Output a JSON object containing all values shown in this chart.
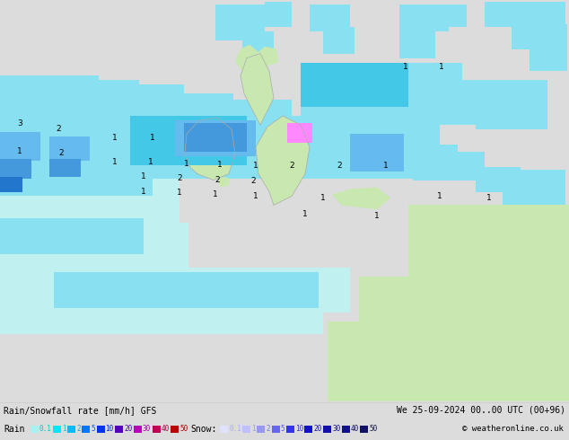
{
  "title_line1": "Rain/Snowfall rate [mm/h] GFS",
  "title_line2": "We 25-09-2024 00..00 UTC (00+96)",
  "copyright": "© weatheronline.co.uk",
  "rain_label": "Rain",
  "snow_label": "Snow:",
  "fig_width": 6.34,
  "fig_height": 4.9,
  "dpi": 100,
  "bg_color": "#dcdcdc",
  "legend_bg": "#ffffff",
  "rain_swatch_colors": [
    "#aaf0f0",
    "#00e8ff",
    "#00bbff",
    "#0077ff",
    "#0033ee",
    "#5500bb",
    "#bb00bb",
    "#bb0055",
    "#bb0000"
  ],
  "snow_swatch_colors": [
    "#e0e0ff",
    "#c0c0ff",
    "#9898ee",
    "#6666ee",
    "#3333ee",
    "#1111cc",
    "#1111aa",
    "#111188",
    "#111166"
  ],
  "rain_text_colors": [
    "#00cccc",
    "#00cccc",
    "#00aaff",
    "#0055ff",
    "#0022cc",
    "#4400aa",
    "#aa00aa",
    "#aa0044",
    "#aa0000"
  ],
  "snow_text_colors": [
    "#aaaaff",
    "#9999ee",
    "#7777ee",
    "#5555ee",
    "#3333cc",
    "#1111aa",
    "#111188",
    "#111166",
    "#111144"
  ],
  "rain_vals": [
    "0.1",
    "1",
    "2",
    "5",
    "10",
    "20",
    "30",
    "40",
    "50"
  ],
  "snow_vals": [
    "0.1",
    "1",
    "2",
    "5",
    "10",
    "20",
    "30",
    "40",
    "50"
  ],
  "map_grey": "#dcdcdc",
  "land_green": "#c8e8b0",
  "cyan_pale": "#c0f0f0",
  "cyan_light": "#88e0f0",
  "cyan_mid": "#44c8e8",
  "cyan_bright": "#00c8e8",
  "blue_light": "#66bbee",
  "blue_mid": "#4499dd",
  "blue_dark": "#2277cc",
  "blue_deeper": "#0055bb",
  "magenta": "#ff88ff",
  "pink_pale": "#f0c8f0"
}
